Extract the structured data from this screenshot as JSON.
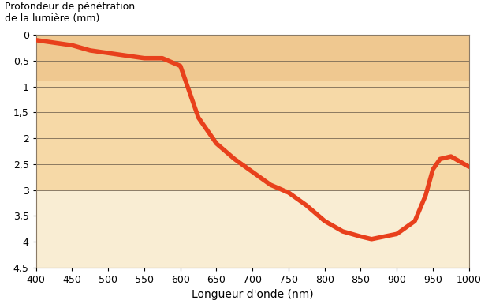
{
  "chart_data": {
    "type": "line",
    "y_label": "Profondeur de pénétration\nde la lumière (mm)",
    "x_label": "Longueur d'onde (nm)",
    "x": [
      400,
      425,
      450,
      475,
      500,
      525,
      550,
      575,
      600,
      610,
      625,
      650,
      675,
      700,
      725,
      750,
      775,
      800,
      825,
      850,
      865,
      900,
      925,
      940,
      950,
      960,
      975,
      1000
    ],
    "values": [
      0.1,
      0.15,
      0.2,
      0.3,
      0.35,
      0.4,
      0.45,
      0.45,
      0.6,
      1.0,
      1.6,
      2.1,
      2.4,
      2.65,
      2.9,
      3.05,
      3.3,
      3.6,
      3.8,
      3.9,
      3.95,
      3.85,
      3.6,
      3.1,
      2.6,
      2.4,
      2.35,
      2.55
    ],
    "color": "#e8401c",
    "xlim": [
      400,
      1000
    ],
    "xticks": [
      400,
      450,
      500,
      550,
      600,
      650,
      700,
      750,
      800,
      850,
      900,
      950,
      1000
    ],
    "ylim": [
      4.5,
      0
    ],
    "yticks": [
      0,
      {
        "value": 0.5,
        "label": "0,5"
      },
      1,
      {
        "value": 1.5,
        "label": "1,5"
      },
      2,
      {
        "value": 2.5,
        "label": "2,5"
      },
      3,
      {
        "value": 3.5,
        "label": "3,5"
      },
      4,
      {
        "value": 4.5,
        "label": "4,5"
      }
    ],
    "grid": true
  }
}
